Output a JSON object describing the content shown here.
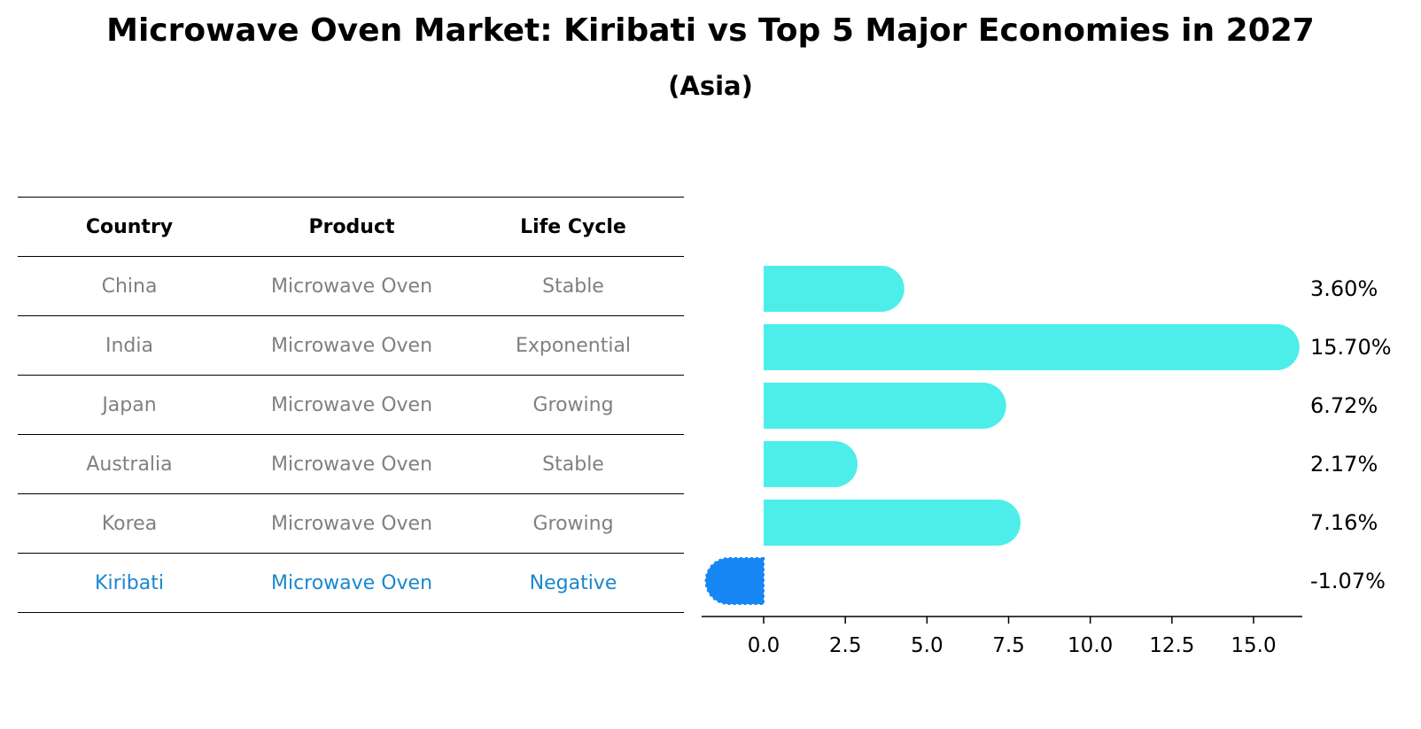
{
  "title": "Microwave Oven Market: Kiribati vs Top 5 Major Economies in 2027",
  "subtitle": "(Asia)",
  "table": {
    "headers": [
      "Country",
      "Product",
      "Life Cycle"
    ],
    "rows": [
      [
        "China",
        "Microwave Oven",
        "Stable"
      ],
      [
        "India",
        "Microwave Oven",
        "Exponential"
      ],
      [
        "Japan",
        "Microwave Oven",
        "Growing"
      ],
      [
        "Australia",
        "Microwave Oven",
        "Stable"
      ],
      [
        "Korea",
        "Microwave Oven",
        "Growing"
      ],
      [
        "Kiribati",
        "Microwave Oven",
        "Negative"
      ]
    ],
    "highlight_row": 5
  },
  "chart_data": {
    "type": "bar",
    "orientation": "horizontal",
    "categories": [
      "China",
      "India",
      "Japan",
      "Australia",
      "Korea",
      "Kiribati"
    ],
    "values": [
      3.6,
      15.7,
      6.72,
      2.17,
      7.16,
      -1.07
    ],
    "value_labels": [
      "3.60%",
      "15.70%",
      "6.72%",
      "2.17%",
      "7.16%",
      "-1.07%"
    ],
    "xticks": [
      "0.0",
      "2.5",
      "5.0",
      "7.5",
      "10.0",
      "12.5",
      "15.0"
    ],
    "xtick_values": [
      0,
      2.5,
      5.0,
      7.5,
      10.0,
      12.5,
      15.0
    ],
    "xlim": [
      -1.95,
      16.6
    ],
    "grid": false,
    "colors": {
      "positive": "#4deeea",
      "negative": "#1787f5"
    }
  }
}
